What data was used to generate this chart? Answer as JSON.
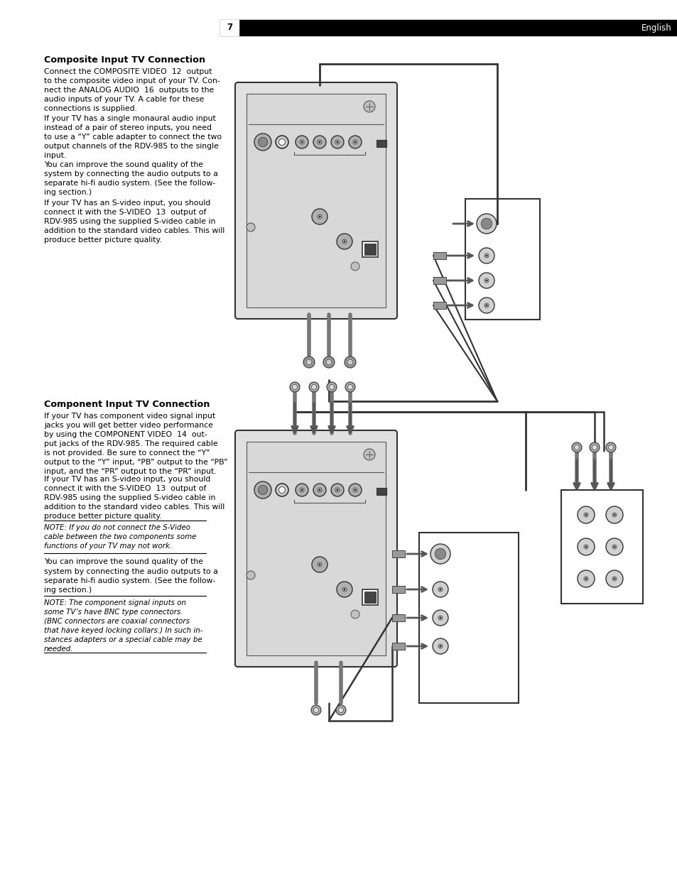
{
  "page_number": "7",
  "header_text": "English",
  "header_bg": "#000000",
  "header_text_color": "#ffffff",
  "bg_color": "#ffffff",
  "text_color": "#000000",
  "section1_title": "Composite Input TV Connection",
  "section1_para1": "Connect the COMPOSITE VIDEO  12  output\nto the composite video input of your TV. Con-\nnect the ANALOG AUDIO  16  outputs to the\naudio inputs of your TV. A cable for these\nconnections is supplied.",
  "section1_para2": "If your TV has a single monaural audio input\ninstead of a pair of stereo inputs, you need\nto use a “Y” cable adapter to connect the two\noutput channels of the RDV-985 to the single\ninput.",
  "section1_para3": "You can improve the sound quality of the\nsystem by connecting the audio outputs to a\nseparate hi-fi audio system. (See the follow-\ning section.)",
  "section1_para4": "If your TV has an S-video input, you should\nconnect it with the S-VIDEO  13  output of\nRDV-985 using the supplied S-video cable in\naddition to the standard video cables. This will\nproduce better picture quality.",
  "section2_title": "Component Input TV Connection",
  "section2_para1": "If your TV has component video signal input\njacks you will get better video performance\nby using the COMPONENT VIDEO  14  out-\nput jacks of the RDV-985. The required cable\nis not provided. Be sure to connect the “Y”\noutput to the “Y” input, “PB” output to the “PB”\ninput, and the “PR” output to the “PR” input.",
  "section2_para2": "If your TV has an S-video input, you should\nconnect it with the S-VIDEO  13  output of\nRDV-985 using the supplied S-video cable in\naddition to the standard video cables. This will\nproduce better picture quality.",
  "section2_note1": "NOTE: If you do not connect the S-Video\ncable between the two components some\nfunctions of your TV may not work.",
  "section2_para3": "You can improve the sound quality of the\nsystem by connecting the audio outputs to a\nseparate hi-fi audio system. (See the follow-\ning section.)",
  "section2_note2": "NOTE: The component signal inputs on\nsome TV’s have BNC type connectors.\n(BNC connectors are coaxial connectors\nthat have keyed locking collars.) In such in-\nstances adapters or a special cable may be\nneeded."
}
